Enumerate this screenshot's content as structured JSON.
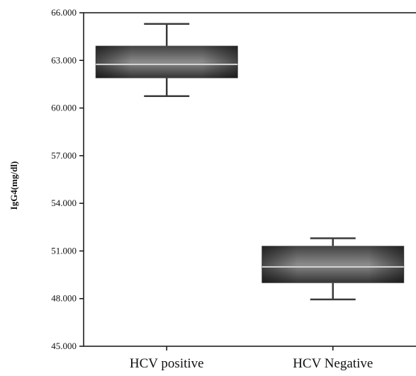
{
  "chart_data": {
    "type": "box",
    "title": "",
    "xlabel": "",
    "ylabel": "IgG4(mg/dl)",
    "ylim": [
      45000,
      66000
    ],
    "yticks": [
      45000,
      48000,
      51000,
      54000,
      57000,
      60000,
      63000,
      66000
    ],
    "ytick_labels": [
      "45.000",
      "48.000",
      "51.000",
      "54.000",
      "57.000",
      "60.000",
      "63.000",
      "66.000"
    ],
    "categories": [
      "HCV positive",
      "HCV Negative"
    ],
    "boxes": [
      {
        "category": "HCV positive",
        "min": 60750,
        "q1": 61900,
        "median": 62750,
        "q3": 63900,
        "max": 65300
      },
      {
        "category": "HCV Negative",
        "min": 47950,
        "q1": 49000,
        "median": 50000,
        "q3": 51300,
        "max": 51800
      }
    ],
    "grid": false,
    "legend": "none"
  }
}
